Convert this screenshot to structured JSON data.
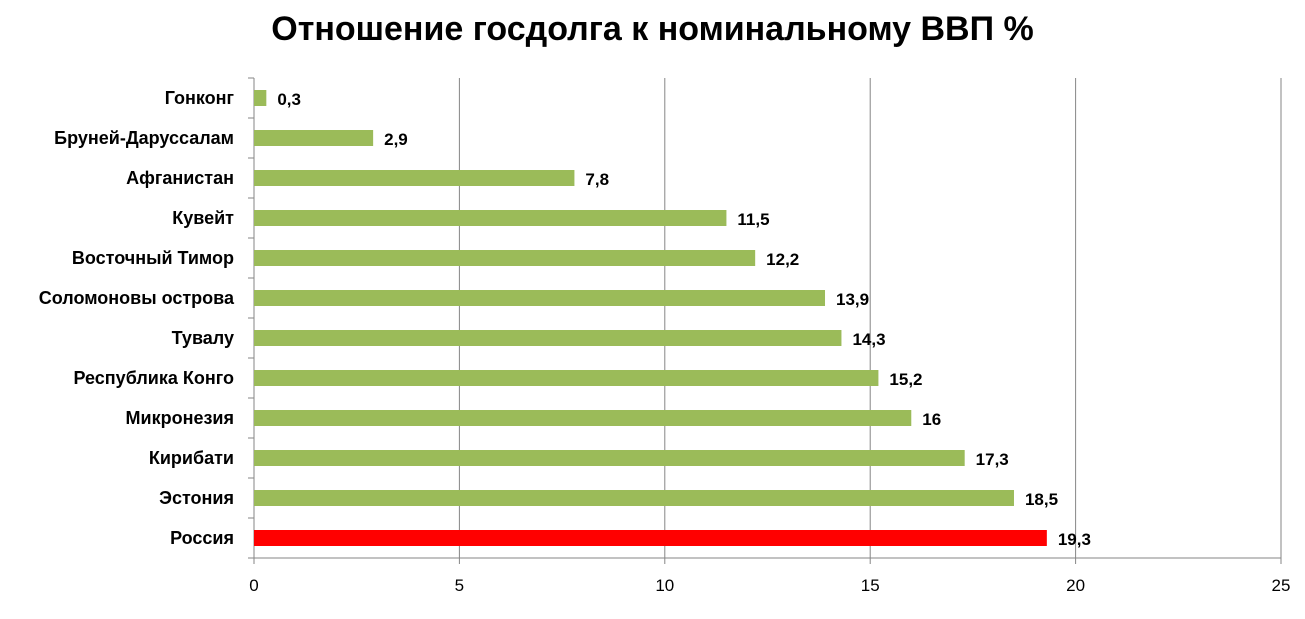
{
  "chart_data": {
    "type": "bar",
    "orientation": "horizontal",
    "title": "Отношение госдолга к номинальному ВВП %",
    "xlabel": "",
    "ylabel": "",
    "xlim": [
      0,
      25
    ],
    "x_ticks": [
      "0",
      "5",
      "10",
      "15",
      "20",
      "25"
    ],
    "grid": "vertical",
    "legend": "none",
    "categories": [
      "Гонконг",
      "Бруней-Даруссалам",
      "Афганистан",
      "Кувейт",
      "Восточный Тимор",
      "Соломоновы острова",
      "Тувалу",
      "Республика Конго",
      "Микронезия",
      "Кирибати",
      "Эстония",
      "Россия"
    ],
    "values": [
      0.3,
      2.9,
      7.8,
      11.5,
      12.2,
      13.9,
      14.3,
      15.2,
      16,
      17.3,
      18.5,
      19.3
    ],
    "value_labels": [
      "0,3",
      "2,9",
      "7,8",
      "11,5",
      "12,2",
      "13,9",
      "14,3",
      "15,2",
      "16",
      "17,3",
      "18,5",
      "19,3"
    ],
    "colors": {
      "default_bar": "#9BBB59",
      "highlight_bar": "#FF0000",
      "grid": "#868686"
    },
    "highlight_category": "Россия"
  }
}
